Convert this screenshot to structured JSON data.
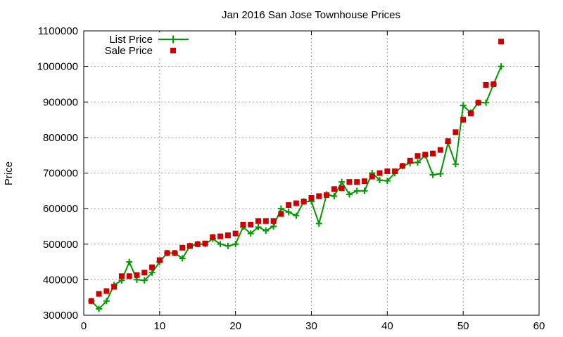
{
  "chart_data": {
    "type": "line",
    "title": "Jan 2016 San Jose Townhouse Prices",
    "xlabel": "",
    "ylabel": "Price",
    "xlim": [
      0,
      60
    ],
    "ylim": [
      300000,
      1100000
    ],
    "xticks": [
      0,
      10,
      20,
      30,
      40,
      50,
      60
    ],
    "yticks": [
      300000,
      400000,
      500000,
      600000,
      700000,
      800000,
      900000,
      1000000,
      1100000
    ],
    "xtick_labels": [
      "0",
      "10",
      "20",
      "30",
      "40",
      "50",
      "60"
    ],
    "ytick_labels": [
      "300000",
      "400000",
      "500000",
      "600000",
      "700000",
      "800000",
      "900000",
      "1000000",
      "1100000"
    ],
    "grid": true,
    "legend_position": "top-left",
    "x": [
      1,
      2,
      3,
      4,
      5,
      6,
      7,
      8,
      9,
      10,
      11,
      12,
      13,
      14,
      15,
      16,
      17,
      18,
      19,
      20,
      21,
      22,
      23,
      24,
      25,
      26,
      27,
      28,
      29,
      30,
      31,
      32,
      33,
      34,
      35,
      36,
      37,
      38,
      39,
      40,
      41,
      42,
      43,
      44,
      45,
      46,
      47,
      48,
      49,
      50,
      51,
      52,
      53,
      54,
      55
    ],
    "series": [
      {
        "name": "List Price",
        "style": "line-points",
        "color": "#009900",
        "values": [
          340000,
          318000,
          340000,
          385000,
          398000,
          450000,
          400000,
          398000,
          420000,
          450000,
          475000,
          475000,
          460000,
          495000,
          500000,
          500000,
          515000,
          500000,
          495000,
          500000,
          548000,
          530000,
          548000,
          538000,
          550000,
          600000,
          590000,
          580000,
          620000,
          620000,
          558000,
          640000,
          635000,
          675000,
          640000,
          650000,
          650000,
          700000,
          680000,
          678000,
          700000,
          720000,
          728000,
          730000,
          750000,
          695000,
          698000,
          785000,
          725000,
          890000,
          870000,
          898000,
          898000,
          950000,
          1000000
        ]
      },
      {
        "name": "Sale Price",
        "style": "points",
        "color": "#cc0000",
        "values": [
          340000,
          360000,
          368000,
          380000,
          410000,
          410000,
          413000,
          420000,
          435000,
          455000,
          475000,
          475000,
          490000,
          495000,
          500000,
          502000,
          520000,
          522000,
          525000,
          530000,
          555000,
          555000,
          565000,
          565000,
          565000,
          585000,
          610000,
          615000,
          620000,
          630000,
          635000,
          638000,
          655000,
          657000,
          675000,
          675000,
          677000,
          690000,
          700000,
          705000,
          705000,
          720000,
          735000,
          748000,
          752000,
          755000,
          765000,
          790000,
          815000,
          850000,
          868000,
          898000,
          948000,
          950000,
          1070000
        ]
      }
    ]
  }
}
